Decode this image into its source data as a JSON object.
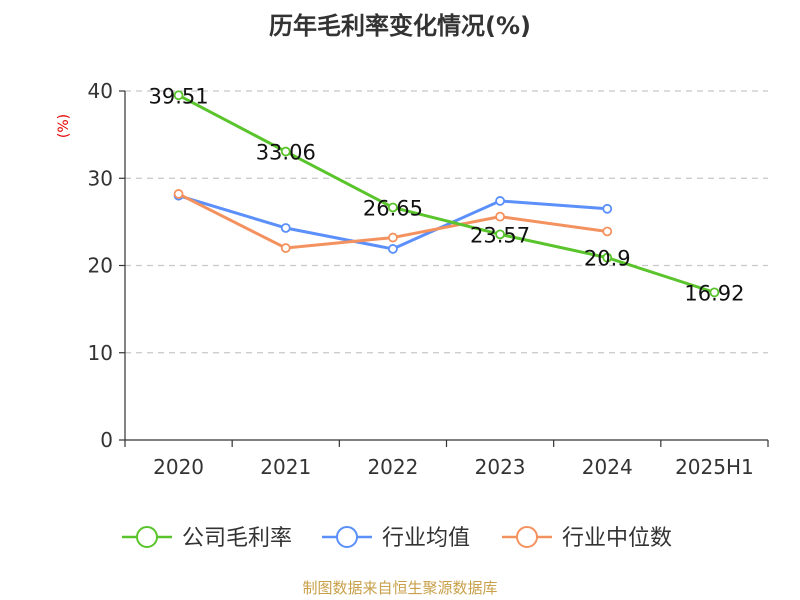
{
  "chart_data": {
    "type": "line",
    "title": "历年毛利率变化情况(%)",
    "ylabel": "(%)",
    "categories": [
      "2020",
      "2021",
      "2022",
      "2023",
      "2024",
      "2025H1"
    ],
    "ylim": [
      0,
      40
    ],
    "yticks": [
      0,
      10,
      20,
      30,
      40
    ],
    "grid": true,
    "legend_position": "bottom",
    "series": [
      {
        "name": "公司毛利率",
        "color": "#5ac42c",
        "values": [
          39.51,
          33.06,
          26.65,
          23.57,
          20.9,
          16.92
        ],
        "labels": [
          "39.51",
          "33.06",
          "26.65",
          "23.57",
          "20.9",
          "16.92"
        ]
      },
      {
        "name": "行业均值",
        "color": "#5b8ff9",
        "values": [
          28.0,
          24.3,
          21.9,
          27.4,
          26.5,
          null
        ]
      },
      {
        "name": "行业中位数",
        "color": "#f4925f",
        "values": [
          28.2,
          22.0,
          23.2,
          25.6,
          23.9,
          null
        ]
      }
    ]
  },
  "source": "制图数据来自恒生聚源数据库"
}
